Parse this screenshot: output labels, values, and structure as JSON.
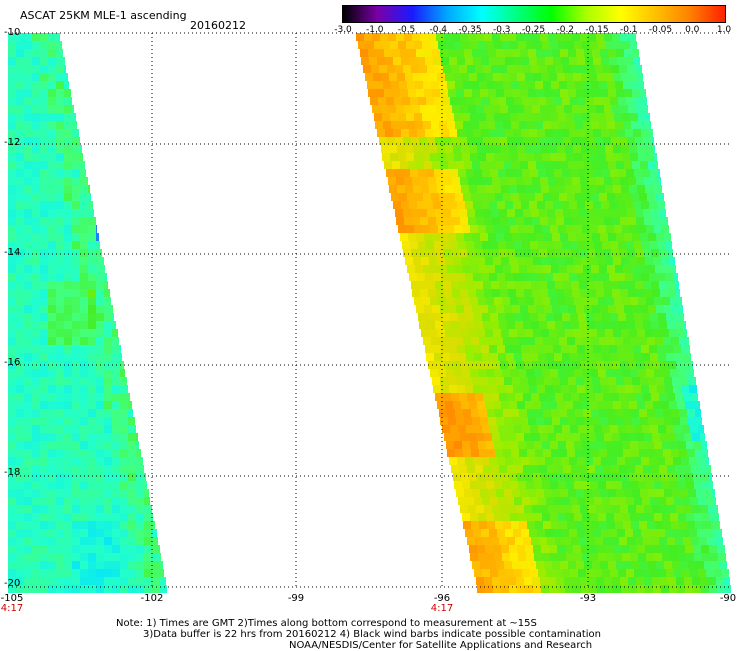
{
  "header": {
    "title": "ASCAT 25KM MLE-1 ascending",
    "date": "20160212"
  },
  "colorbar": {
    "labels": [
      "-3.0",
      "-1.0",
      "-0.5",
      "-0.4",
      "-0.35",
      "-0.3",
      "-0.25",
      "-0.2",
      "-0.15",
      "-0.1",
      "-0.05",
      "0.0",
      "1.0"
    ],
    "colors": [
      "#000000",
      "#7a00a8",
      "#1a1aff",
      "#00a8ff",
      "#00ffff",
      "#00ff80",
      "#00ff00",
      "#a8ff00",
      "#ffff00",
      "#ffc000",
      "#ff8000",
      "#ff2000"
    ]
  },
  "map": {
    "lat_labels": [
      "-10",
      "-12",
      "-14",
      "-16",
      "-18",
      "-20"
    ],
    "lon_labels": [
      "-105",
      "-102",
      "-99",
      "-96",
      "-93",
      "-90"
    ],
    "time_labels": [
      "4:17",
      "4:17"
    ]
  },
  "footer": {
    "note_line1": "Note: 1) Times are GMT 2)Times along bottom correspond to measurement at ~15S",
    "note_line2": "3)Data buffer is 22 hrs from 20160212 4) Black wind barbs indicate possible contamination",
    "note_line3": "NOAA/NESDIS/Center for Satellite Applications and Research"
  }
}
